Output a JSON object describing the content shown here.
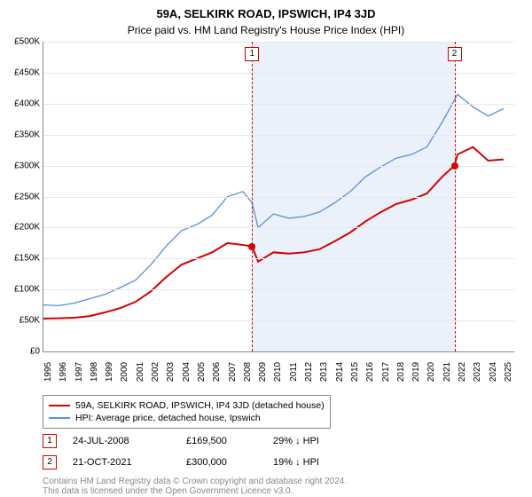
{
  "title": "59A, SELKIRK ROAD, IPSWICH, IP4 3JD",
  "subtitle": "Price paid vs. HM Land Registry's House Price Index (HPI)",
  "chart": {
    "type": "line",
    "background_color": "#ffffff",
    "shade_color": "#eaf1fa",
    "grid_color": "#e8e8e8",
    "x_years": [
      1995,
      1996,
      1997,
      1998,
      1999,
      2000,
      2001,
      2002,
      2003,
      2004,
      2005,
      2006,
      2007,
      2008,
      2009,
      2010,
      2011,
      2012,
      2013,
      2014,
      2015,
      2016,
      2017,
      2018,
      2019,
      2020,
      2021,
      2022,
      2023,
      2024,
      2025
    ],
    "x_min": 1995,
    "x_max": 2025.7,
    "y_min": 0,
    "y_max": 500000,
    "y_ticks": [
      0,
      50000,
      100000,
      150000,
      200000,
      250000,
      300000,
      350000,
      400000,
      450000,
      500000
    ],
    "y_tick_labels": [
      "£0",
      "£50K",
      "£100K",
      "£150K",
      "£200K",
      "£250K",
      "£300K",
      "£350K",
      "£400K",
      "£450K",
      "£500K"
    ],
    "shade_from_year": 2008.6,
    "shade_to_year": 2021.8,
    "series": {
      "property": {
        "color": "#d40000",
        "width": 2,
        "points": [
          [
            1995,
            53000
          ],
          [
            1996,
            53500
          ],
          [
            1997,
            54500
          ],
          [
            1998,
            57000
          ],
          [
            1999,
            63000
          ],
          [
            2000,
            70000
          ],
          [
            2001,
            80000
          ],
          [
            2002,
            97000
          ],
          [
            2003,
            120000
          ],
          [
            2004,
            140000
          ],
          [
            2005,
            150000
          ],
          [
            2006,
            160000
          ],
          [
            2007,
            175000
          ],
          [
            2008,
            172000
          ],
          [
            2008.6,
            169500
          ],
          [
            2009,
            145000
          ],
          [
            2010,
            160000
          ],
          [
            2011,
            158000
          ],
          [
            2012,
            160000
          ],
          [
            2013,
            165000
          ],
          [
            2014,
            178000
          ],
          [
            2015,
            192000
          ],
          [
            2016,
            210000
          ],
          [
            2017,
            225000
          ],
          [
            2018,
            238000
          ],
          [
            2019,
            245000
          ],
          [
            2020,
            255000
          ],
          [
            2021,
            282000
          ],
          [
            2021.8,
            300000
          ],
          [
            2022,
            318000
          ],
          [
            2023,
            330000
          ],
          [
            2024,
            308000
          ],
          [
            2025,
            310000
          ]
        ]
      },
      "hpi": {
        "color": "#5b8fd6",
        "width": 1.3,
        "points": [
          [
            1995,
            75000
          ],
          [
            1996,
            74000
          ],
          [
            1997,
            78000
          ],
          [
            1998,
            85000
          ],
          [
            1999,
            92000
          ],
          [
            2000,
            103000
          ],
          [
            2001,
            115000
          ],
          [
            2002,
            140000
          ],
          [
            2003,
            170000
          ],
          [
            2004,
            195000
          ],
          [
            2005,
            205000
          ],
          [
            2006,
            220000
          ],
          [
            2007,
            250000
          ],
          [
            2008,
            258000
          ],
          [
            2008.6,
            240000
          ],
          [
            2009,
            200000
          ],
          [
            2010,
            222000
          ],
          [
            2011,
            215000
          ],
          [
            2012,
            218000
          ],
          [
            2013,
            225000
          ],
          [
            2014,
            240000
          ],
          [
            2015,
            258000
          ],
          [
            2016,
            282000
          ],
          [
            2017,
            298000
          ],
          [
            2018,
            312000
          ],
          [
            2019,
            318000
          ],
          [
            2020,
            330000
          ],
          [
            2021,
            370000
          ],
          [
            2022,
            415000
          ],
          [
            2023,
            395000
          ],
          [
            2024,
            380000
          ],
          [
            2025,
            392000
          ]
        ]
      }
    },
    "sale_markers": [
      {
        "n": "1",
        "year": 2008.6,
        "value": 169500
      },
      {
        "n": "2",
        "year": 2021.8,
        "value": 300000
      }
    ],
    "label_fontsize": 10
  },
  "legend": {
    "items": [
      {
        "color": "#d40000",
        "label": "59A, SELKIRK ROAD, IPSWICH, IP4 3JD (detached house)"
      },
      {
        "color": "#5b8fd6",
        "label": "HPI: Average price, detached house, Ipswich"
      }
    ]
  },
  "sales": [
    {
      "n": "1",
      "date": "24-JUL-2008",
      "price": "£169,500",
      "delta": "29% ↓ HPI"
    },
    {
      "n": "2",
      "date": "21-OCT-2021",
      "price": "£300,000",
      "delta": "19% ↓ HPI"
    }
  ],
  "footer_line1": "Contains HM Land Registry data © Crown copyright and database right 2024.",
  "footer_line2": "This data is licensed under the Open Government Licence v3.0."
}
